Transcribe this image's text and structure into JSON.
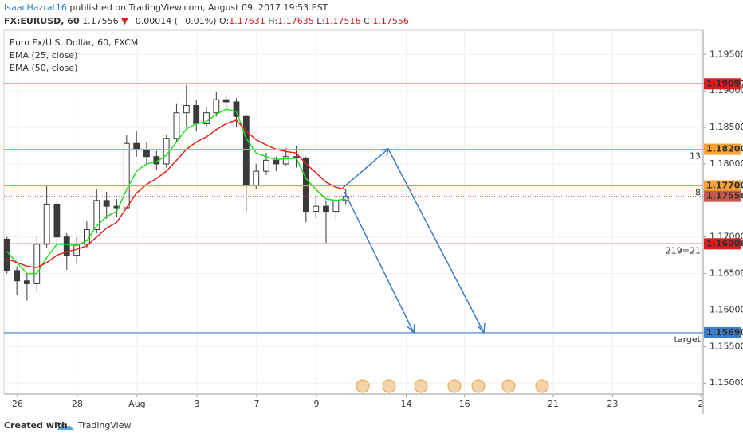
{
  "header": {
    "author": "IsaacHazrat16",
    "published": "published on TradingView.com, August 09, 2017 19:53 EST",
    "symbol": "FX:EURUSD, 60",
    "last": "1.17556",
    "arrow": "▼",
    "change": "−0.00014 (−0.01%)",
    "o_label": "O:",
    "o": "1.17631",
    "h_label": "H:",
    "h": "1.17635",
    "l_label": "L:",
    "l": "1.17516",
    "c_label": "C:",
    "c": "1.17556"
  },
  "chart_data": {
    "type": "candlestick",
    "title": "Euro Fx/U.S. Dollar, 60, FXCM",
    "x": [
      -0.35,
      -0.02,
      0.32,
      0.65,
      0.98,
      1.32,
      1.65,
      1.98,
      2.32,
      2.65,
      2.98,
      3.32,
      3.65,
      3.98,
      4.32,
      4.65,
      4.98,
      5.32,
      5.65,
      5.98,
      6.32,
      6.65,
      6.98,
      7.32,
      7.65,
      7.98,
      8.32,
      8.65,
      8.98,
      9.32,
      9.65,
      9.98,
      10.32,
      10.65,
      10.98
    ],
    "open": [
      1.1697,
      1.1654,
      1.164,
      1.1636,
      1.169,
      1.1745,
      1.17,
      1.1675,
      1.169,
      1.171,
      1.175,
      1.1742,
      1.174,
      1.1828,
      1.182,
      1.181,
      1.18,
      1.1835,
      1.187,
      1.188,
      1.1855,
      1.187,
      1.1888,
      1.1885,
      1.1865,
      1.177,
      1.179,
      1.1805,
      1.18,
      1.181,
      1.1808,
      1.1735,
      1.1742,
      1.1735,
      1.175
    ],
    "high": [
      1.17,
      1.166,
      1.165,
      1.17,
      1.177,
      1.1752,
      1.1705,
      1.17,
      1.1722,
      1.1765,
      1.1762,
      1.1752,
      1.184,
      1.1845,
      1.183,
      1.1818,
      1.184,
      1.1882,
      1.1908,
      1.1888,
      1.1878,
      1.1898,
      1.1895,
      1.189,
      1.1868,
      1.18,
      1.1815,
      1.181,
      1.1822,
      1.1825,
      1.181,
      1.1755,
      1.175,
      1.1758,
      1.1765
    ],
    "low": [
      1.165,
      1.162,
      1.1613,
      1.1625,
      1.1685,
      1.169,
      1.1655,
      1.1665,
      1.1685,
      1.1705,
      1.1725,
      1.1728,
      1.1738,
      1.181,
      1.18,
      1.1792,
      1.1795,
      1.183,
      1.185,
      1.1845,
      1.185,
      1.1865,
      1.1875,
      1.185,
      1.1735,
      1.1765,
      1.1785,
      1.179,
      1.1798,
      1.1795,
      1.172,
      1.1725,
      1.1692,
      1.1725,
      1.1745
    ],
    "close": [
      1.1654,
      1.164,
      1.1636,
      1.169,
      1.1745,
      1.17,
      1.1675,
      1.169,
      1.171,
      1.175,
      1.1742,
      1.174,
      1.1828,
      1.182,
      1.181,
      1.18,
      1.1835,
      1.187,
      1.188,
      1.1855,
      1.187,
      1.1888,
      1.1885,
      1.1865,
      1.177,
      1.179,
      1.1805,
      1.18,
      1.181,
      1.1808,
      1.1735,
      1.1742,
      1.1735,
      1.175,
      1.17556
    ],
    "up_color": "#ffffff",
    "down_color": "#3a3a3a",
    "series": [
      {
        "name": "EMA (25, close)",
        "color": "#22dd22",
        "values": [
          1.168,
          1.1665,
          1.165,
          1.165,
          1.1672,
          1.169,
          1.169,
          1.1688,
          1.1695,
          1.1715,
          1.1728,
          1.1735,
          1.1765,
          1.179,
          1.18,
          1.1803,
          1.1812,
          1.183,
          1.1848,
          1.1855,
          1.1858,
          1.1868,
          1.1875,
          1.1872,
          1.1835,
          1.1815,
          1.181,
          1.1806,
          1.1807,
          1.1808,
          1.178,
          1.1765,
          1.1752,
          1.175,
          1.1752
        ]
      },
      {
        "name": "EMA (50, close)",
        "color": "#e8211c",
        "values": [
          1.167,
          1.1665,
          1.166,
          1.1658,
          1.1665,
          1.1675,
          1.168,
          1.1683,
          1.1688,
          1.17,
          1.1712,
          1.172,
          1.174,
          1.176,
          1.1772,
          1.178,
          1.179,
          1.1805,
          1.182,
          1.183,
          1.1837,
          1.1847,
          1.1855,
          1.186,
          1.1845,
          1.1833,
          1.1826,
          1.182,
          1.1817,
          1.1815,
          1.18,
          1.1788,
          1.1775,
          1.1768,
          1.1765
        ]
      }
    ],
    "levels": [
      {
        "value": 1.19097,
        "color": "#e0191f"
      },
      {
        "value": 1.182,
        "label": "1.18200",
        "color": "#f7a234",
        "note": "13"
      },
      {
        "value": 1.177,
        "label": "1.17700",
        "color": "#f7a234",
        "note": "8"
      },
      {
        "value": 1.16906,
        "color": "#e0191f",
        "note": "219=21"
      },
      {
        "value": 1.1569,
        "label": "1.15690",
        "color": "#3d7cc9",
        "note": "target"
      }
    ],
    "current": {
      "value": 1.17556,
      "color": "#c9574b"
    },
    "xlim": [
      -0.45,
      22.93
    ],
    "xticks": [
      {
        "value": 0,
        "label": "26"
      },
      {
        "value": 2,
        "label": "28"
      },
      {
        "value": 4,
        "label": "Aug"
      },
      {
        "value": 6,
        "label": "3"
      },
      {
        "value": 8,
        "label": "7"
      },
      {
        "value": 10,
        "label": "9"
      },
      {
        "value": 13,
        "label": "14"
      },
      {
        "value": 14.95,
        "label": "16"
      },
      {
        "value": 17.92,
        "label": "21"
      },
      {
        "value": 19.9,
        "label": "23"
      },
      {
        "value": 22.85,
        "label": "2"
      }
    ],
    "ylim": [
      1.1485,
      1.1983
    ],
    "yticks": [
      {
        "value": 1.15,
        "label": "1.15000"
      },
      {
        "value": 1.155,
        "label": "1.15500"
      },
      {
        "value": 1.16,
        "label": "1.16000"
      },
      {
        "value": 1.165,
        "label": "1.16500"
      },
      {
        "value": 1.17,
        "label": "1.17000"
      },
      {
        "value": 1.18,
        "label": "1.18000"
      },
      {
        "value": 1.185,
        "label": "1.18500"
      },
      {
        "value": 1.19,
        "label": "1.19000"
      },
      {
        "value": 1.195,
        "label": "1.19500"
      }
    ],
    "grid": true
  },
  "footer": {
    "created": "Created with",
    "brand": "TradingView"
  }
}
